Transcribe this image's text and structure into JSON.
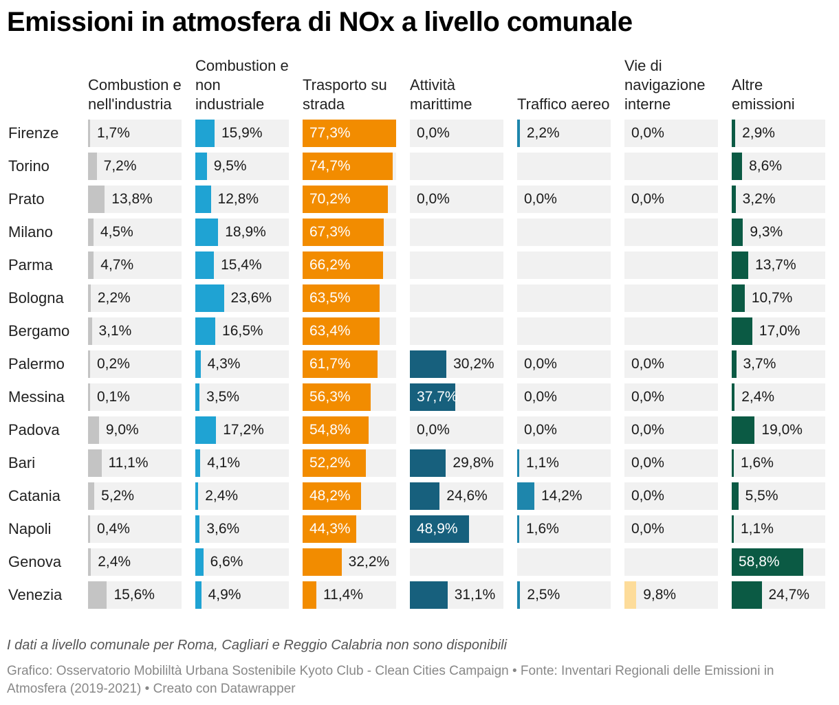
{
  "title": "Emissioni in atmosfera di NOx a livello comunale",
  "note": "I dati a livello comunale per Roma, Cagliari e Reggio Calabria non sono disponibili",
  "footer": "Grafico: Osservatorio Mobililtà Urbana Sostenibile Kyoto Club - Clean Cities Campaign • Fonte: Inventari Regionali delle Emissioni in Atmosfera (2019-2021) • Creato con Datawrapper",
  "chart_data": {
    "type": "table",
    "unit": "%",
    "scale_max": 77.3,
    "columns": [
      {
        "key": "ind",
        "label": "Combustion e nell'industria",
        "color": "#c4c4c4"
      },
      {
        "key": "nonind",
        "label": "Combustion e non industriale",
        "color": "#1fa3d3"
      },
      {
        "key": "road",
        "label": "Trasporto su strada",
        "color": "#f28c00"
      },
      {
        "key": "sea",
        "label": "Attività marittime",
        "color": "#17607d"
      },
      {
        "key": "air",
        "label": "Traffico aereo",
        "color": "#1e86ac"
      },
      {
        "key": "inland",
        "label": "Vie di navigazione interne",
        "color": "#fddc9a"
      },
      {
        "key": "other",
        "label": "Altre emissioni",
        "color": "#0b5a44"
      }
    ],
    "rows": [
      {
        "city": "Firenze",
        "values": [
          1.7,
          15.9,
          77.3,
          0.0,
          2.2,
          0.0,
          2.9
        ],
        "labels": [
          "1,7%",
          "15,9%",
          "77,3%",
          "0,0%",
          "2,2%",
          "0,0%",
          "2,9%"
        ]
      },
      {
        "city": "Torino",
        "values": [
          7.2,
          9.5,
          74.7,
          null,
          null,
          null,
          8.6
        ],
        "labels": [
          "7,2%",
          "9,5%",
          "74,7%",
          "",
          "",
          "",
          "8,6%"
        ]
      },
      {
        "city": "Prato",
        "values": [
          13.8,
          12.8,
          70.2,
          0.0,
          0.0,
          0.0,
          3.2
        ],
        "labels": [
          "13,8%",
          "12,8%",
          "70,2%",
          "0,0%",
          "0,0%",
          "0,0%",
          "3,2%"
        ]
      },
      {
        "city": "Milano",
        "values": [
          4.5,
          18.9,
          67.3,
          null,
          null,
          null,
          9.3
        ],
        "labels": [
          "4,5%",
          "18,9%",
          "67,3%",
          "",
          "",
          "",
          "9,3%"
        ]
      },
      {
        "city": "Parma",
        "values": [
          4.7,
          15.4,
          66.2,
          null,
          null,
          null,
          13.7
        ],
        "labels": [
          "4,7%",
          "15,4%",
          "66,2%",
          "",
          "",
          "",
          "13,7%"
        ]
      },
      {
        "city": "Bologna",
        "values": [
          2.2,
          23.6,
          63.5,
          null,
          null,
          null,
          10.7
        ],
        "labels": [
          "2,2%",
          "23,6%",
          "63,5%",
          "",
          "",
          "",
          "10,7%"
        ]
      },
      {
        "city": "Bergamo",
        "values": [
          3.1,
          16.5,
          63.4,
          null,
          null,
          null,
          17.0
        ],
        "labels": [
          "3,1%",
          "16,5%",
          "63,4%",
          "",
          "",
          "",
          "17,0%"
        ]
      },
      {
        "city": "Palermo",
        "values": [
          0.2,
          4.3,
          61.7,
          30.2,
          0.0,
          0.0,
          3.7
        ],
        "labels": [
          "0,2%",
          "4,3%",
          "61,7%",
          "30,2%",
          "0,0%",
          "0,0%",
          "3,7%"
        ]
      },
      {
        "city": "Messina",
        "values": [
          0.1,
          3.5,
          56.3,
          37.7,
          0.0,
          0.0,
          2.4
        ],
        "labels": [
          "0,1%",
          "3,5%",
          "56,3%",
          "37,7%",
          "0,0%",
          "0,0%",
          "2,4%"
        ]
      },
      {
        "city": "Padova",
        "values": [
          9.0,
          17.2,
          54.8,
          0.0,
          0.0,
          0.0,
          19.0
        ],
        "labels": [
          "9,0%",
          "17,2%",
          "54,8%",
          "0,0%",
          "0,0%",
          "0,0%",
          "19,0%"
        ]
      },
      {
        "city": "Bari",
        "values": [
          11.1,
          4.1,
          52.2,
          29.8,
          1.1,
          0.0,
          1.6
        ],
        "labels": [
          "11,1%",
          "4,1%",
          "52,2%",
          "29,8%",
          "1,1%",
          "0,0%",
          "1,6%"
        ]
      },
      {
        "city": "Catania",
        "values": [
          5.2,
          2.4,
          48.2,
          24.6,
          14.2,
          0.0,
          5.5
        ],
        "labels": [
          "5,2%",
          "2,4%",
          "48,2%",
          "24,6%",
          "14,2%",
          "0,0%",
          "5,5%"
        ]
      },
      {
        "city": "Napoli",
        "values": [
          0.4,
          3.6,
          44.3,
          48.9,
          1.6,
          0.0,
          1.1
        ],
        "labels": [
          "0,4%",
          "3,6%",
          "44,3%",
          "48,9%",
          "1,6%",
          "0,0%",
          "1,1%"
        ]
      },
      {
        "city": "Genova",
        "values": [
          2.4,
          6.6,
          32.2,
          null,
          null,
          null,
          58.8
        ],
        "labels": [
          "2,4%",
          "6,6%",
          "32,2%",
          "",
          "",
          "",
          "58,8%"
        ]
      },
      {
        "city": "Venezia",
        "values": [
          15.6,
          4.9,
          11.4,
          31.1,
          2.5,
          9.8,
          24.7
        ],
        "labels": [
          "15,6%",
          "4,9%",
          "11,4%",
          "31,1%",
          "2,5%",
          "9,8%",
          "24,7%"
        ]
      }
    ]
  }
}
